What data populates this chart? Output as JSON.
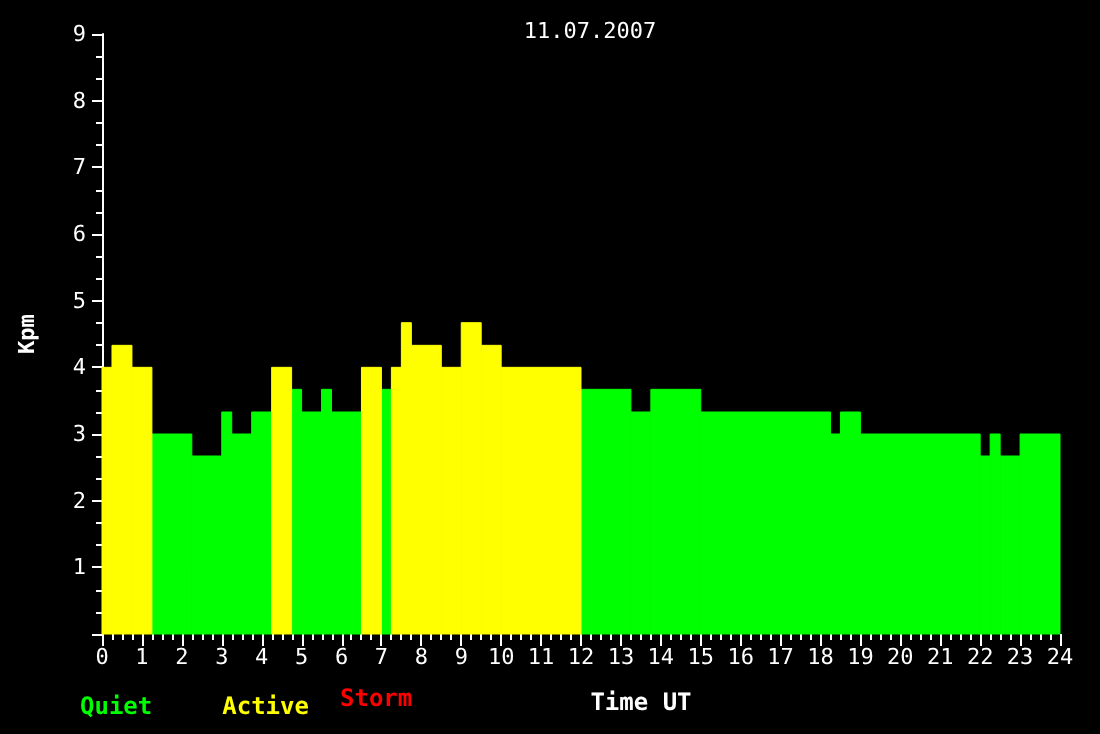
{
  "chart_data": {
    "type": "histogram",
    "title": "11.07.2007",
    "xlabel": "Time UT",
    "ylabel": "Kpm",
    "bins": [
      0,
      0.25,
      0.75,
      1.25,
      2.25,
      3,
      3.25,
      3.75,
      4.25,
      4.75,
      5,
      5.5,
      5.75,
      6.5,
      7,
      7.25,
      7.5,
      7.75,
      8.5,
      9,
      9.5,
      10,
      12,
      13.25,
      13.75,
      15,
      18.25,
      18.5,
      19,
      22,
      22.25,
      22.5,
      23,
      24
    ],
    "series": [
      {
        "name": "Quiet",
        "color": "#00ff00",
        "values": [
          null,
          null,
          null,
          3,
          2.67,
          3.33,
          3,
          3.33,
          null,
          3.67,
          3.33,
          3.67,
          3.33,
          null,
          3.67,
          null,
          null,
          null,
          null,
          null,
          null,
          null,
          3.67,
          3.33,
          3.67,
          3.33,
          3,
          3.33,
          3,
          2.67,
          3,
          2.67,
          3
        ]
      },
      {
        "name": "Active",
        "color": "#ffff00",
        "values": [
          4,
          4.33,
          4,
          null,
          null,
          null,
          null,
          null,
          4,
          null,
          null,
          null,
          null,
          4,
          null,
          4,
          4.67,
          4.33,
          4,
          4.67,
          4.33,
          4,
          null,
          null,
          null,
          null,
          null,
          null,
          null,
          null,
          null,
          null,
          null
        ]
      }
    ],
    "annotations": [
      "Storm"
    ],
    "xlim": [
      0,
      24
    ],
    "xticks": [
      0,
      1,
      2,
      3,
      4,
      5,
      6,
      7,
      8,
      9,
      10,
      11,
      12,
      13,
      14,
      15,
      16,
      17,
      18,
      19,
      20,
      21,
      22,
      23,
      24
    ],
    "ylim": [
      0,
      9
    ],
    "yticks": [
      {
        "value": 0,
        "label": null
      },
      1,
      2,
      3,
      4,
      5,
      6,
      7,
      8,
      9
    ],
    "grid": false,
    "legend": "bottom left"
  }
}
